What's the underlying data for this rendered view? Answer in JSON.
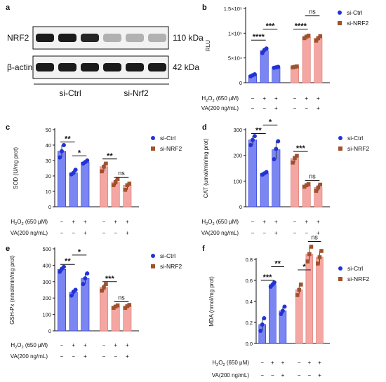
{
  "figure": {
    "colors": {
      "blue_fill": "#7b86f2",
      "blue_point": "#2233d6",
      "red_fill": "#f4a6a2",
      "red_point": "#a0522d",
      "axis": "#111111",
      "blot_band": "#1a1a1a"
    }
  },
  "blot": {
    "letter": "a",
    "rows": [
      {
        "protein": "NRF2",
        "size": "110 kDa",
        "band_intensity": [
          1.0,
          1.0,
          0.95,
          0.3,
          0.3,
          0.3
        ]
      },
      {
        "protein": "β-actin",
        "size": "42 kDa",
        "band_intensity": [
          1.0,
          1.0,
          1.0,
          1.0,
          1.0,
          1.0
        ]
      }
    ],
    "groups": [
      "si-Ctrl",
      "si-Nrf2"
    ]
  },
  "conditions": {
    "row1_label": "H2O2 (650 μM)",
    "row2_label": "VA(200 ng/mL)",
    "h2o2": [
      "−",
      "+",
      "+",
      "−",
      "+",
      "+"
    ],
    "va": [
      "−",
      "−",
      "+",
      "−",
      "−",
      "+"
    ]
  },
  "legend": {
    "series": [
      "si-Ctrl",
      "si-NRF2"
    ]
  },
  "chart_data": [
    {
      "panel": "b",
      "type": "bar",
      "ylabel": "RLU",
      "ylim": [
        0,
        150000
      ],
      "yticks": [
        0,
        50000,
        100000,
        150000
      ],
      "yticklabels": [
        "0",
        "5×10⁴",
        "1×10⁵",
        "1.5×10⁵"
      ],
      "series": [
        {
          "name": "si-Ctrl",
          "values": [
            15000,
            65000,
            31000
          ],
          "points": [
            [
              13000,
              15000,
              17000
            ],
            [
              60000,
              66000,
              69000
            ],
            [
              30000,
              31000,
              32000
            ]
          ]
        },
        {
          "name": "si-NRF2",
          "values": [
            32000,
            92000,
            90000
          ],
          "points": [
            [
              31000,
              32000,
              33000
            ],
            [
              90000,
              93000,
              95000
            ],
            [
              85000,
              90000,
              94000
            ]
          ]
        }
      ],
      "significance": [
        {
          "series": 0,
          "from": 0,
          "to": 1,
          "label": "****",
          "y": 86000
        },
        {
          "series": 0,
          "from": 1,
          "to": 2,
          "label": "***",
          "y": 108000
        },
        {
          "series": 1,
          "from": 0,
          "to": 1,
          "label": "****",
          "y": 108000
        },
        {
          "series": 1,
          "from": 1,
          "to": 2,
          "label": "ns",
          "y": 135000
        }
      ]
    },
    {
      "panel": "c",
      "type": "bar",
      "ylabel": "SOD (U/mg prot)",
      "ylim": [
        0,
        50
      ],
      "yticks": [
        0,
        10,
        20,
        30,
        40,
        50
      ],
      "yticklabels": [
        "0",
        "10",
        "20",
        "30",
        "40",
        "50"
      ],
      "series": [
        {
          "name": "si-Ctrl",
          "values": [
            36,
            22,
            29
          ],
          "points": [
            [
              32,
              36,
              40
            ],
            [
              21,
              22,
              24
            ],
            [
              28,
              29,
              30
            ]
          ]
        },
        {
          "name": "si-NRF2",
          "values": [
            26,
            16,
            14
          ],
          "points": [
            [
              23,
              26,
              28
            ],
            [
              14,
              16,
              18
            ],
            [
              11,
              14,
              15
            ]
          ]
        }
      ],
      "significance": [
        {
          "series": 0,
          "from": 0,
          "to": 1,
          "label": "**",
          "y": 42
        },
        {
          "series": 0,
          "from": 1,
          "to": 2,
          "label": "*",
          "y": 33
        },
        {
          "series": 1,
          "from": 0,
          "to": 1,
          "label": "**",
          "y": 31
        },
        {
          "series": 1,
          "from": 1,
          "to": 2,
          "label": "ns",
          "y": 19
        }
      ]
    },
    {
      "panel": "d",
      "type": "bar",
      "ylabel": "CAT (umol/min/mg prot)",
      "ylim": [
        0,
        300
      ],
      "yticks": [
        0,
        100,
        200,
        300
      ],
      "yticklabels": [
        "0",
        "100",
        "200",
        "300"
      ],
      "series": [
        {
          "name": "si-Ctrl",
          "values": [
            260,
            130,
            222
          ],
          "points": [
            [
              240,
              260,
              275
            ],
            [
              125,
              130,
              135
            ],
            [
              185,
              225,
              255
            ]
          ]
        },
        {
          "name": "si-NRF2",
          "values": [
            187,
            83,
            75
          ],
          "points": [
            [
              172,
              190,
              198
            ],
            [
              78,
              84,
              88
            ],
            [
              62,
              75,
              86
            ]
          ]
        }
      ],
      "significance": [
        {
          "series": 0,
          "from": 0,
          "to": 1,
          "label": "**",
          "y": 285
        },
        {
          "series": 0,
          "from": 1,
          "to": 2,
          "label": "*",
          "y": 318
        },
        {
          "series": 1,
          "from": 0,
          "to": 1,
          "label": "***",
          "y": 215
        },
        {
          "series": 1,
          "from": 1,
          "to": 2,
          "label": "ns",
          "y": 102
        }
      ]
    },
    {
      "panel": "e",
      "type": "bar",
      "ylabel": "GSH-Px (nmol/min/mg prot)",
      "ylim": [
        0,
        500
      ],
      "yticks": [
        0,
        100,
        200,
        300,
        400,
        500
      ],
      "yticklabels": [
        "0",
        "100",
        "200",
        "300",
        "400",
        "500"
      ],
      "series": [
        {
          "name": "si-Ctrl",
          "values": [
            375,
            235,
            320
          ],
          "points": [
            [
              360,
              378,
              390
            ],
            [
              215,
              238,
              250
            ],
            [
              285,
              320,
              350
            ]
          ]
        },
        {
          "name": "si-NRF2",
          "values": [
            265,
            148,
            150
          ],
          "points": [
            [
              245,
              265,
              285
            ],
            [
              140,
              148,
              155
            ],
            [
              140,
              150,
              158
            ]
          ]
        }
      ],
      "significance": [
        {
          "series": 0,
          "from": 0,
          "to": 1,
          "label": "**",
          "y": 405
        },
        {
          "series": 0,
          "from": 1,
          "to": 2,
          "label": "*",
          "y": 462
        },
        {
          "series": 1,
          "from": 0,
          "to": 1,
          "label": "***",
          "y": 300
        },
        {
          "series": 1,
          "from": 1,
          "to": 2,
          "label": "ns",
          "y": 178
        }
      ]
    },
    {
      "panel": "f",
      "type": "bar",
      "ylabel": "MDA (nmol/mg prot)",
      "ylim": [
        0,
        0.8
      ],
      "yticks": [
        0,
        0.2,
        0.4,
        0.6,
        0.8
      ],
      "yticklabels": [
        "0.0",
        "0.2",
        "0.4",
        "0.6",
        "0.8"
      ],
      "series": [
        {
          "name": "si-Ctrl",
          "values": [
            0.18,
            0.56,
            0.31
          ],
          "points": [
            [
              0.12,
              0.18,
              0.24
            ],
            [
              0.54,
              0.56,
              0.58
            ],
            [
              0.28,
              0.31,
              0.35
            ]
          ]
        },
        {
          "name": "si-NRF2",
          "values": [
            0.51,
            0.85,
            0.82
          ],
          "points": [
            [
              0.46,
              0.51,
              0.56
            ],
            [
              0.78,
              0.85,
              0.92
            ],
            [
              0.76,
              0.82,
              0.88
            ]
          ]
        }
      ],
      "significance": [
        {
          "series": 0,
          "from": 0,
          "to": 1,
          "label": "***",
          "y": 0.6
        },
        {
          "series": 0,
          "from": 1,
          "to": 2,
          "label": "**",
          "y": 0.73
        },
        {
          "series": 1,
          "from": 0,
          "to": 1,
          "label": "*",
          "y": 0.7
        },
        {
          "series": 1,
          "from": 1,
          "to": 2,
          "label": "ns",
          "y": 0.97
        }
      ]
    }
  ]
}
